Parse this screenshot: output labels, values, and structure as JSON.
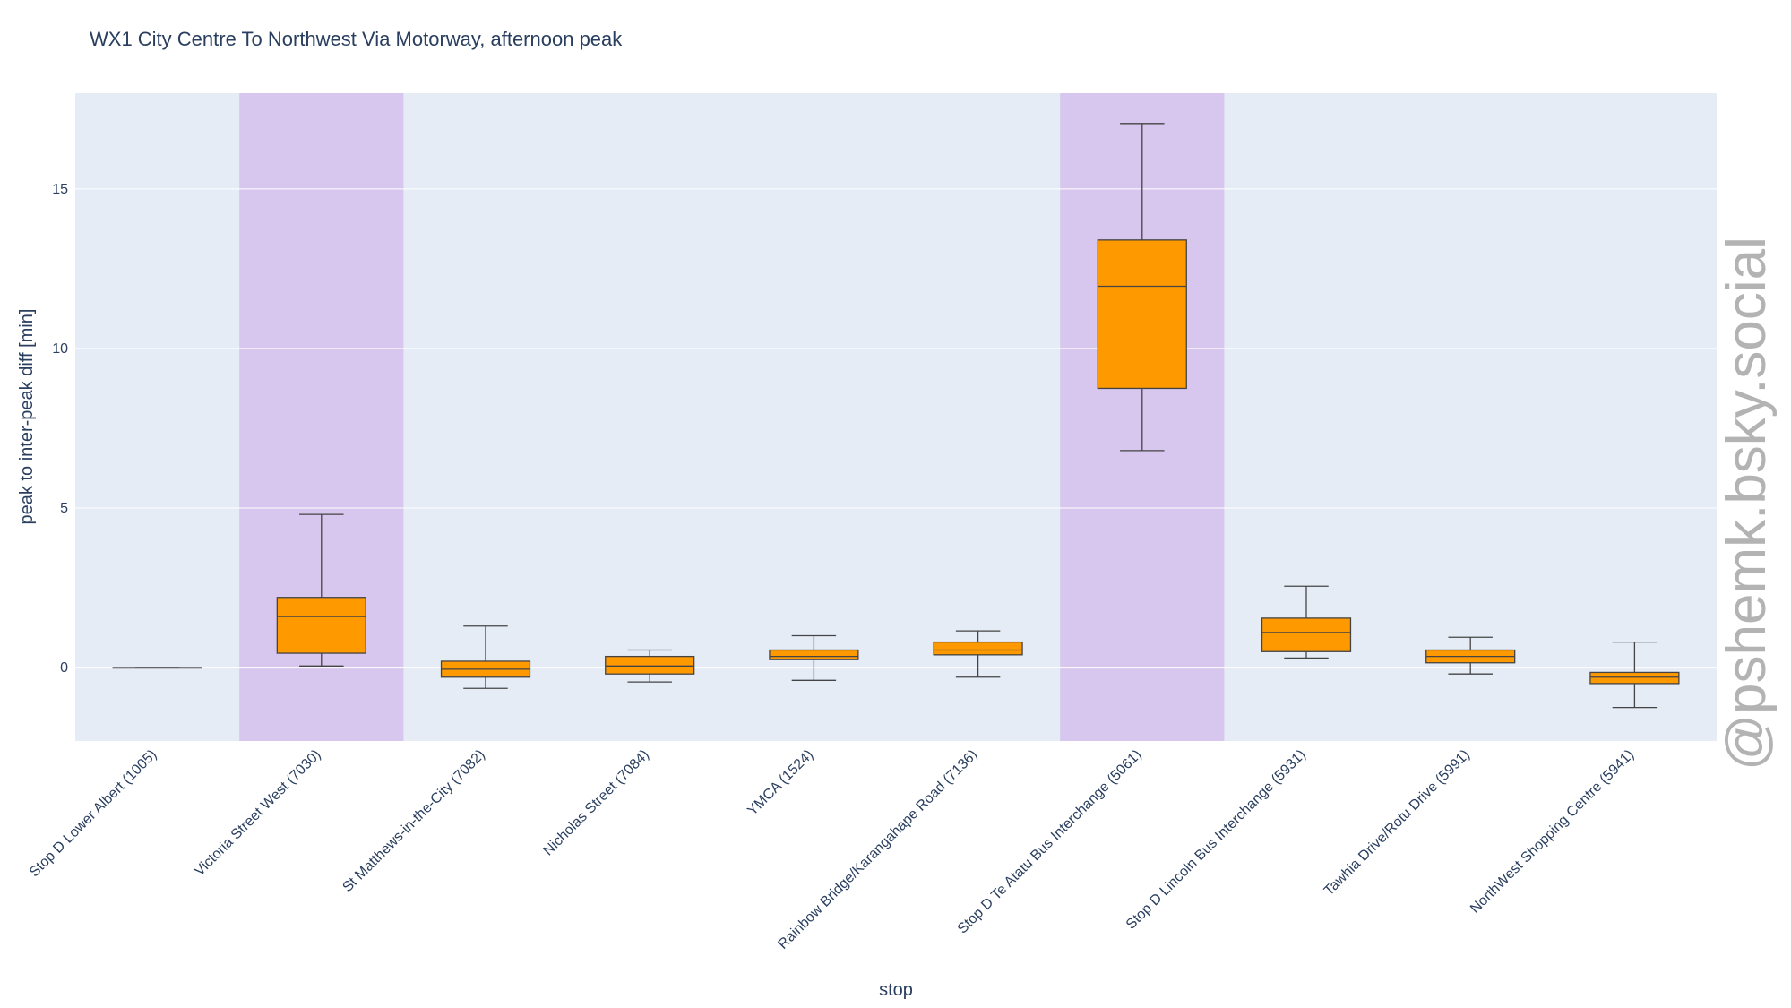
{
  "chart_data": {
    "type": "box",
    "title": "WX1 City Centre To Northwest Via Motorway, afternoon peak",
    "xlabel": "stop",
    "ylabel": "peak to inter-peak diff [min]",
    "ylim": [
      -2.3,
      18.0
    ],
    "yticks": [
      0,
      5,
      10,
      15
    ],
    "grid": true,
    "colors": {
      "plot_bg": "#e5ecf6",
      "highlight": "#d7c6ee",
      "box_fill": "#ff9900",
      "box_line": "#444444",
      "grid": "#ffffff",
      "text": "#2a3f5f"
    },
    "categories": [
      "Stop D Lower Albert (1005)",
      "Victoria Street West (7030)",
      "St Matthews-in-the-City (7082)",
      "Nicholas Street (7084)",
      "YMCA (1524)",
      "Rainbow Bridge/Karangahape Road (7136)",
      "Stop D Te Atatu Bus Interchange (5061)",
      "Stop D Lincoln Bus Interchange (5931)",
      "Tawhia Drive/Rotu Drive (5991)",
      "NorthWest Shopping Centre (5941)"
    ],
    "highlighted": [
      "Victoria Street West (7030)",
      "Stop D Te Atatu Bus Interchange (5061)"
    ],
    "boxes": [
      {
        "min": 0.0,
        "q1": 0.0,
        "median": 0.0,
        "q3": 0.0,
        "max": 0.0
      },
      {
        "min": 0.05,
        "q1": 0.45,
        "median": 1.6,
        "q3": 2.2,
        "max": 4.8
      },
      {
        "min": -0.65,
        "q1": -0.3,
        "median": -0.05,
        "q3": 0.2,
        "max": 1.3
      },
      {
        "min": -0.45,
        "q1": -0.2,
        "median": 0.05,
        "q3": 0.35,
        "max": 0.55
      },
      {
        "min": -0.4,
        "q1": 0.25,
        "median": 0.35,
        "q3": 0.55,
        "max": 1.0
      },
      {
        "min": -0.3,
        "q1": 0.4,
        "median": 0.55,
        "q3": 0.8,
        "max": 1.15
      },
      {
        "min": 6.8,
        "q1": 8.75,
        "median": 11.95,
        "q3": 13.4,
        "max": 17.05
      },
      {
        "min": 0.3,
        "q1": 0.5,
        "median": 1.1,
        "q3": 1.55,
        "max": 2.55
      },
      {
        "min": -0.2,
        "q1": 0.15,
        "median": 0.35,
        "q3": 0.55,
        "max": 0.95
      },
      {
        "min": -1.25,
        "q1": -0.5,
        "median": -0.3,
        "q3": -0.15,
        "max": 0.8
      }
    ]
  },
  "watermark": "@pshemk.bsky.social"
}
